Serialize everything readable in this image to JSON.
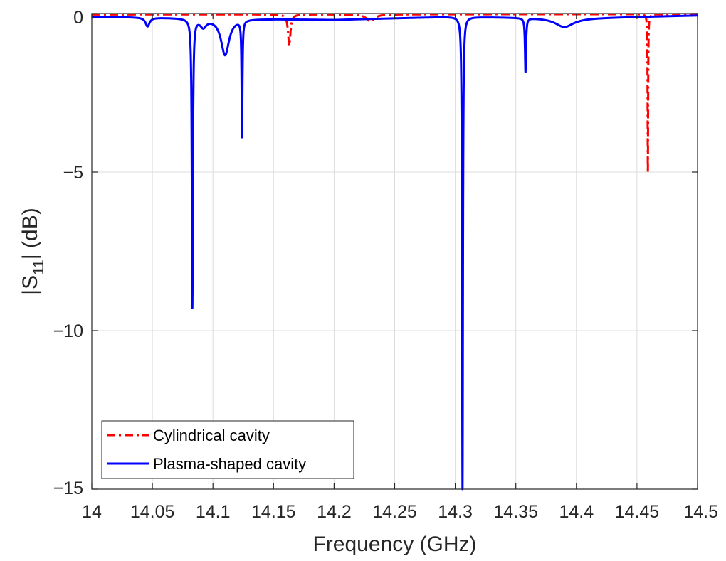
{
  "chart_data": {
    "type": "line",
    "title": "",
    "xlabel": "Frequency (GHz)",
    "ylabel": "|S11| (dB)",
    "ylabel_parts": {
      "pre": "|S",
      "sub": "11",
      "post": "| (dB)"
    },
    "xlim": [
      14,
      14.5
    ],
    "ylim": [
      -15,
      0
    ],
    "x_ticks": [
      14,
      14.05,
      14.1,
      14.15,
      14.2,
      14.25,
      14.3,
      14.35,
      14.4,
      14.45,
      14.5
    ],
    "x_tick_labels": [
      "14",
      "14.05",
      "14.1",
      "14.15",
      "14.2",
      "14.25",
      "14.3",
      "14.35",
      "14.4",
      "14.45",
      "14.5"
    ],
    "y_ticks": [
      0,
      -5,
      -10,
      -15
    ],
    "y_tick_labels": [
      "0",
      "−5",
      "−10",
      "−15"
    ],
    "grid": true,
    "legend_position": "bottom-left",
    "series": [
      {
        "name": "Cylindrical cavity",
        "color": "#ff0000",
        "style": "dash-dot",
        "baseline": [
          [
            14,
            -0.03
          ],
          [
            14.5,
            -0.02
          ]
        ],
        "dips": [
          {
            "x": 14.163,
            "depth": 0.98,
            "width": 0.0012
          },
          {
            "x": 14.23,
            "depth": 0.22,
            "width": 0.004
          },
          {
            "x": 14.459,
            "depth": 5.0,
            "width": 0.00025
          }
        ]
      },
      {
        "name": "Plasma-shaped cavity",
        "color": "#0000ff",
        "style": "solid",
        "baseline": [
          [
            14,
            -0.1
          ],
          [
            14.1,
            -0.15
          ],
          [
            14.2,
            -0.2
          ],
          [
            14.3,
            -0.1
          ],
          [
            14.4,
            -0.15
          ],
          [
            14.5,
            -0.06
          ]
        ],
        "dips": [
          {
            "x": 14.046,
            "depth": 0.28,
            "width": 0.002
          },
          {
            "x": 14.083,
            "depth": 9.1,
            "width": 0.0005
          },
          {
            "x": 14.092,
            "depth": 0.25,
            "width": 0.003
          },
          {
            "x": 14.11,
            "depth": 1.15,
            "width": 0.004
          },
          {
            "x": 14.124,
            "depth": 3.65,
            "width": 0.0004
          },
          {
            "x": 14.306,
            "depth": 14.9,
            "width": 0.0004
          },
          {
            "x": 14.358,
            "depth": 1.7,
            "width": 0.0005
          },
          {
            "x": 14.39,
            "depth": 0.28,
            "width": 0.009
          }
        ]
      }
    ]
  }
}
